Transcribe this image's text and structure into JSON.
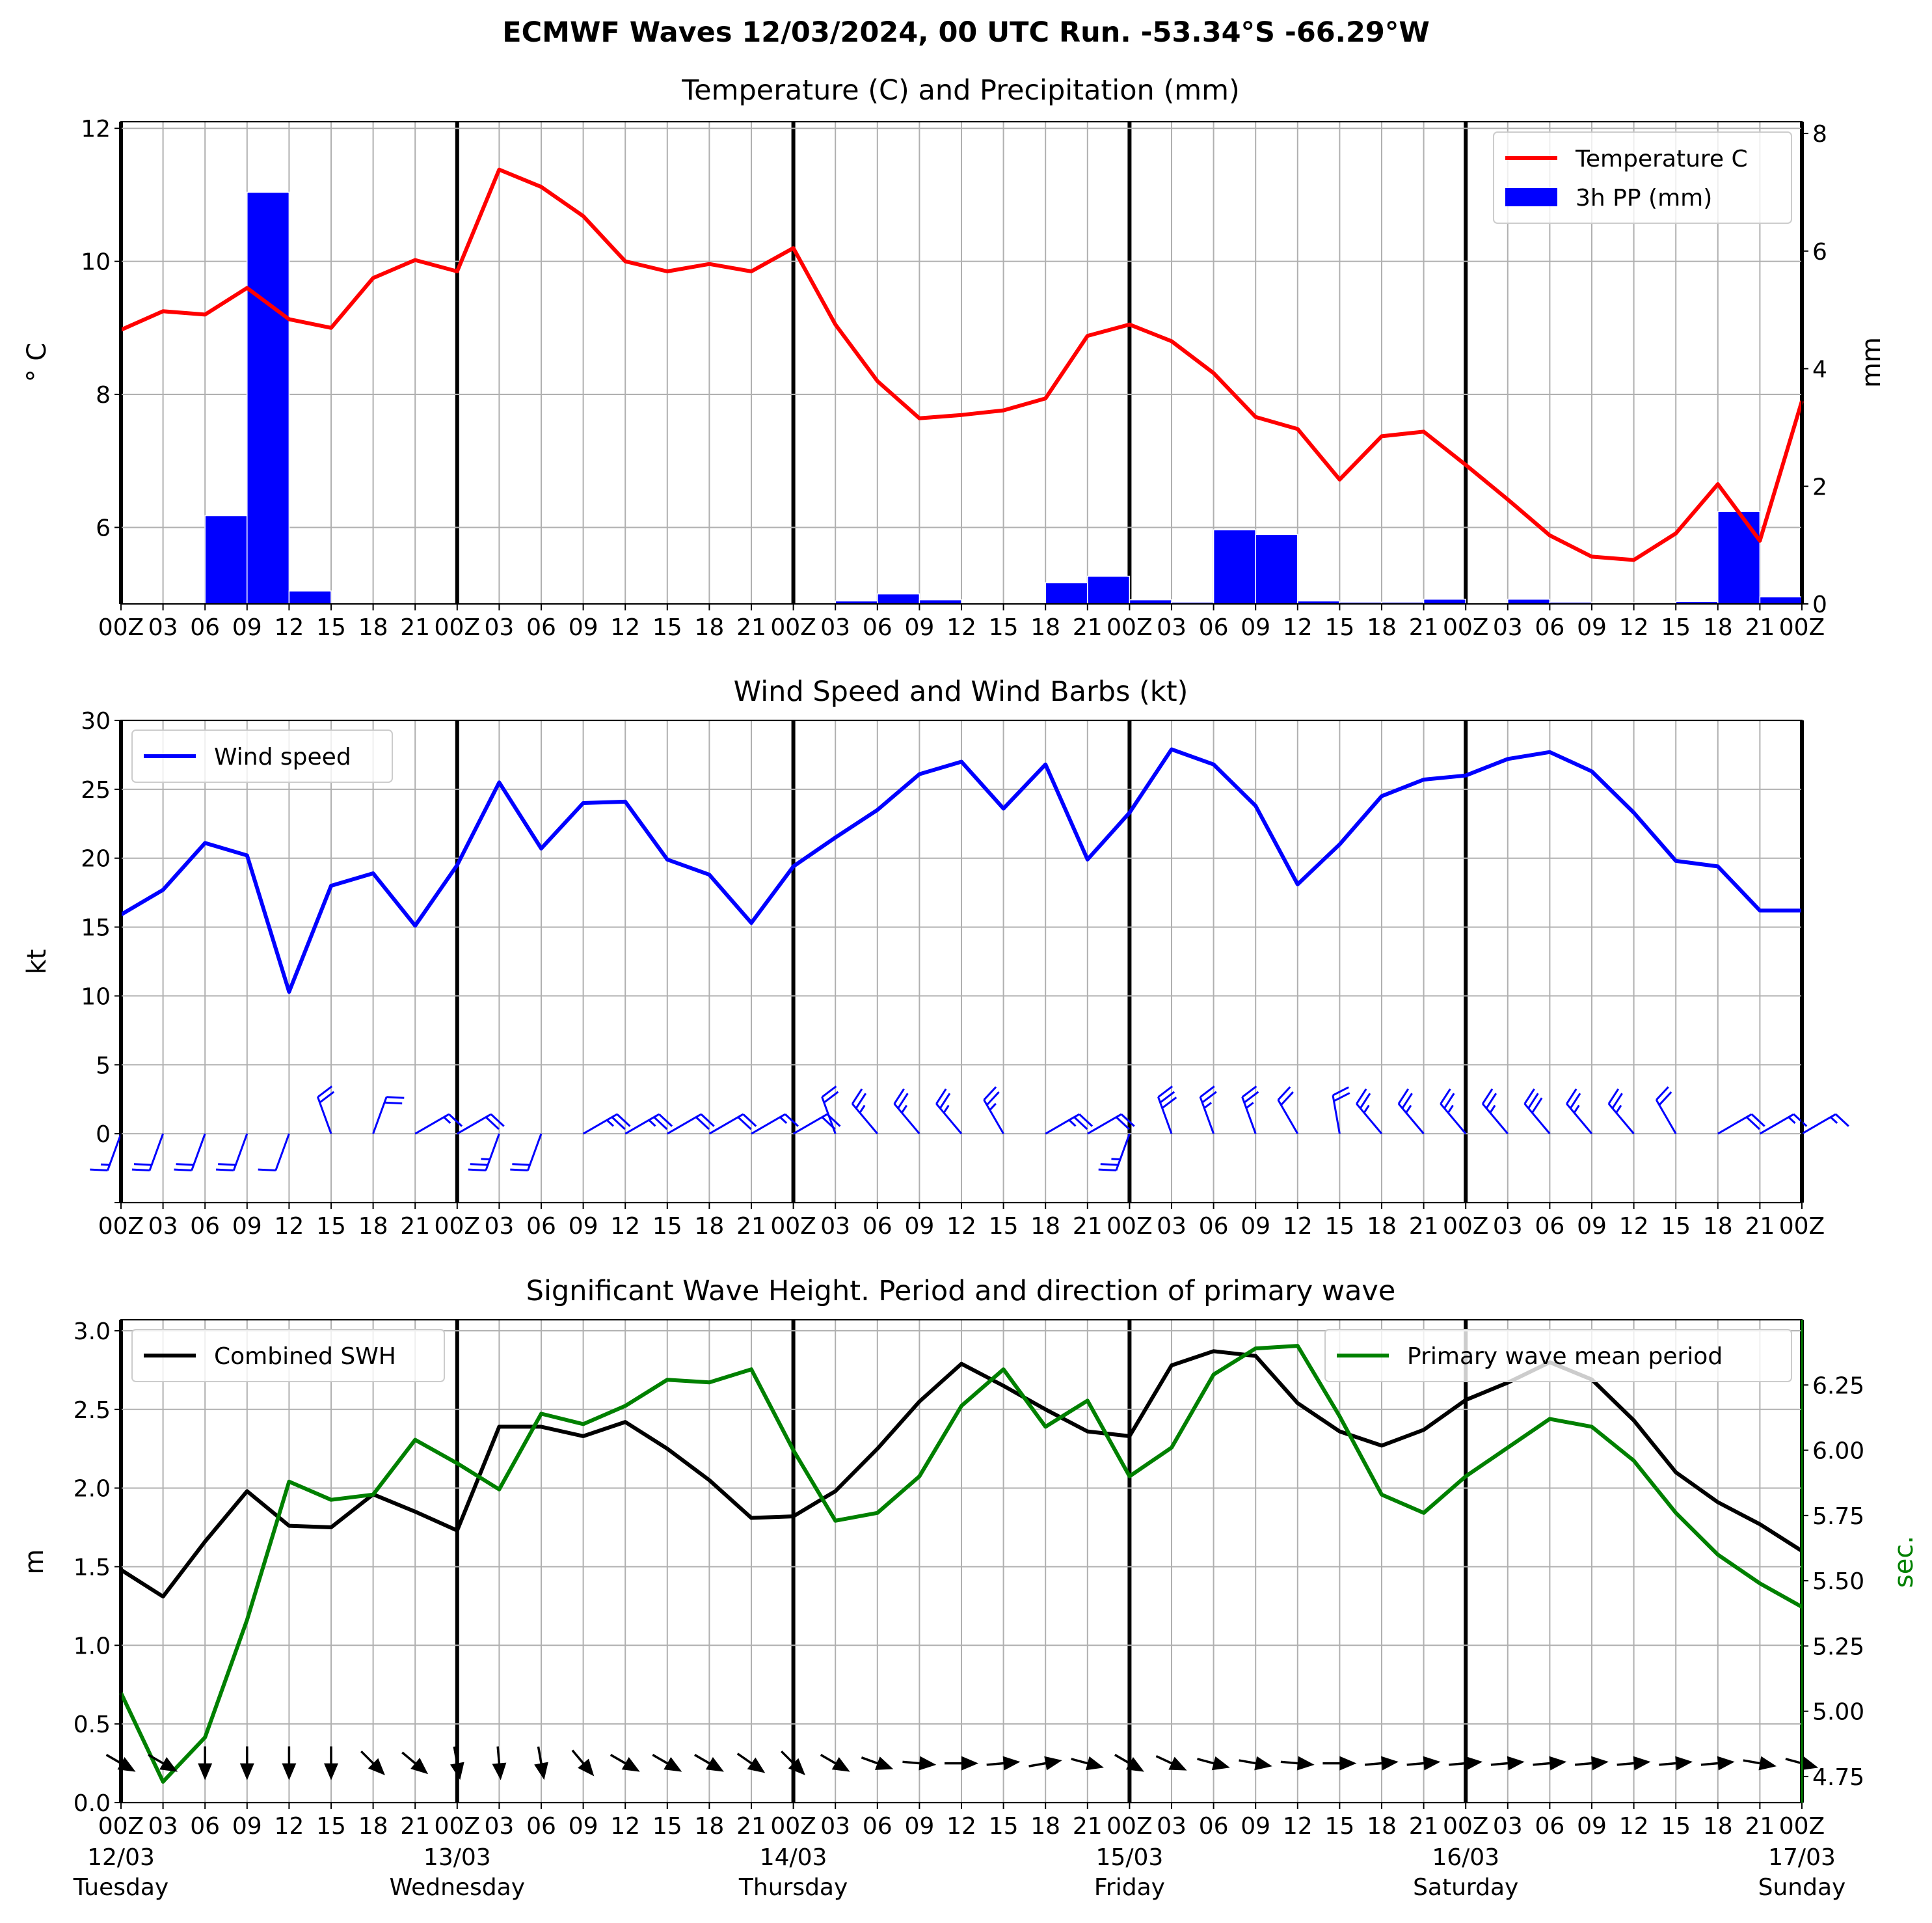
{
  "suptitle": "ECMWF Waves 12/03/2024, 00 UTC Run. -53.34°S -66.29°W",
  "colors": {
    "temperature": "#ff0000",
    "precip": "#0000ff",
    "wind": "#0000ff",
    "swh": "#000000",
    "period": "#008000"
  },
  "chart_data": [
    {
      "type": "line",
      "title": "Temperature (C) and Precipitation (mm)",
      "ylabel": "$^\\circ$C",
      "ylabel_display": "° C",
      "y2label": "mm",
      "ylim": [
        4.85,
        12.1
      ],
      "y2lim": [
        0,
        8.2
      ],
      "yticks": [
        6,
        8,
        10,
        12
      ],
      "y2ticks": [
        0,
        2,
        4,
        6,
        8
      ],
      "x_hours_step": 3,
      "legend": [
        "Temperature C",
        "3h PP (mm)"
      ],
      "legend_placement": "top-right",
      "grid": true,
      "temperature": [
        8.97,
        9.25,
        9.2,
        9.6,
        9.13,
        9.0,
        9.75,
        10.02,
        9.85,
        11.38,
        11.12,
        10.68,
        10.0,
        9.85,
        9.96,
        9.85,
        10.2,
        9.05,
        8.2,
        7.64,
        7.69,
        7.76,
        7.94,
        8.88,
        9.05,
        8.8,
        8.32,
        7.66,
        7.48,
        6.72,
        7.37,
        7.44,
        6.94,
        6.42,
        5.88,
        5.56,
        5.51,
        5.91,
        6.65,
        5.8,
        7.9
      ],
      "precip": [
        0,
        0,
        1.5,
        7.0,
        0.22,
        0,
        0,
        0,
        0,
        0,
        0,
        0,
        0,
        0,
        0,
        0,
        0,
        0.05,
        0.17,
        0.07,
        0,
        0,
        0.36,
        0.47,
        0.07,
        0.03,
        1.26,
        1.18,
        0.05,
        0.03,
        0.03,
        0.08,
        0,
        0.08,
        0.03,
        0,
        0.02,
        0.04,
        1.57,
        0.12
      ]
    },
    {
      "type": "line",
      "title": "Wind Speed and Wind Barbs (kt)",
      "ylabel": "kt",
      "ylim": [
        -5,
        30
      ],
      "yticks": [
        0,
        5,
        10,
        15,
        20,
        25,
        30
      ],
      "legend": [
        "Wind speed"
      ],
      "legend_placement": "top-left",
      "grid": true,
      "wind_speed": [
        15.9,
        17.7,
        21.1,
        20.2,
        10.3,
        18.0,
        18.9,
        15.1,
        19.5,
        25.5,
        20.7,
        24.0,
        24.1,
        19.9,
        18.8,
        15.3,
        19.4,
        21.5,
        23.5,
        26.1,
        27.0,
        23.6,
        26.8,
        19.9,
        23.3,
        27.9,
        26.8,
        23.8,
        18.1,
        21.0,
        24.5,
        25.7,
        26.0,
        27.2,
        27.7,
        26.3,
        23.3,
        19.8,
        19.4,
        16.2,
        16.2
      ],
      "wind_from_deg": [
        200,
        200,
        200,
        200,
        200,
        340,
        20,
        60,
        60,
        200,
        200,
        60,
        60,
        60,
        60,
        60,
        60,
        340,
        320,
        320,
        320,
        330,
        60,
        60,
        200,
        340,
        340,
        340,
        330,
        350,
        320,
        320,
        320,
        320,
        320,
        320,
        320,
        330,
        60,
        60,
        60
      ]
    },
    {
      "type": "line",
      "title": "Significant Wave Height. Period and direction of primary wave",
      "ylabel": "m",
      "y2label": "sec.",
      "ylim": [
        0,
        3.07
      ],
      "y2lim": [
        4.65,
        6.5
      ],
      "yticks": [
        0.0,
        0.5,
        1.0,
        1.5,
        2.0,
        2.5,
        3.0
      ],
      "y2ticks": [
        4.75,
        5.0,
        5.25,
        5.5,
        5.75,
        6.0,
        6.25
      ],
      "legend": [
        "Combined SWH",
        "Primary wave mean period"
      ],
      "grid": true,
      "swh": [
        1.48,
        1.31,
        1.66,
        1.98,
        1.76,
        1.75,
        1.96,
        1.85,
        1.73,
        2.39,
        2.39,
        2.33,
        2.42,
        2.25,
        2.05,
        1.81,
        1.82,
        1.98,
        2.25,
        2.55,
        2.79,
        2.65,
        2.5,
        2.36,
        2.33,
        2.78,
        2.87,
        2.84,
        2.54,
        2.36,
        2.27,
        2.37,
        2.56,
        2.67,
        2.8,
        2.69,
        2.43,
        2.1,
        1.91,
        1.77,
        1.6
      ],
      "period": [
        5.07,
        4.73,
        4.9,
        5.35,
        5.88,
        5.81,
        5.83,
        6.04,
        5.95,
        5.85,
        6.14,
        6.1,
        6.17,
        6.27,
        6.26,
        6.31,
        6.0,
        5.73,
        5.76,
        5.9,
        6.17,
        6.31,
        6.09,
        6.19,
        5.9,
        6.01,
        6.29,
        6.39,
        6.4,
        6.13,
        5.83,
        5.76,
        5.9,
        6.01,
        6.12,
        6.09,
        5.96,
        5.76,
        5.6,
        5.49,
        5.4
      ],
      "wave_dir_deg": [
        -30,
        -30,
        -90,
        -90,
        -90,
        -90,
        -45,
        -40,
        -80,
        -85,
        -80,
        -50,
        -30,
        -30,
        -30,
        -35,
        -45,
        -30,
        -20,
        -5,
        0,
        5,
        10,
        -15,
        -30,
        -25,
        -15,
        -10,
        -5,
        0,
        5,
        5,
        5,
        5,
        5,
        5,
        5,
        5,
        5,
        -10,
        -15
      ]
    }
  ],
  "x_axis": {
    "hour_labels": [
      "00Z",
      "03",
      "06",
      "09",
      "12",
      "15",
      "18",
      "21",
      "00Z",
      "03",
      "06",
      "09",
      "12",
      "15",
      "18",
      "21",
      "00Z",
      "03",
      "06",
      "09",
      "12",
      "15",
      "18",
      "21",
      "00Z",
      "03",
      "06",
      "09",
      "12",
      "15",
      "18",
      "21",
      "00Z",
      "03",
      "06",
      "09",
      "12",
      "15",
      "18",
      "21",
      "00Z"
    ],
    "dates": [
      "12/03",
      "13/03",
      "14/03",
      "15/03",
      "16/03",
      "17/03"
    ],
    "weekdays": [
      "Tuesday",
      "Wednesday",
      "Thursday",
      "Friday",
      "Saturday",
      "Sunday"
    ]
  }
}
